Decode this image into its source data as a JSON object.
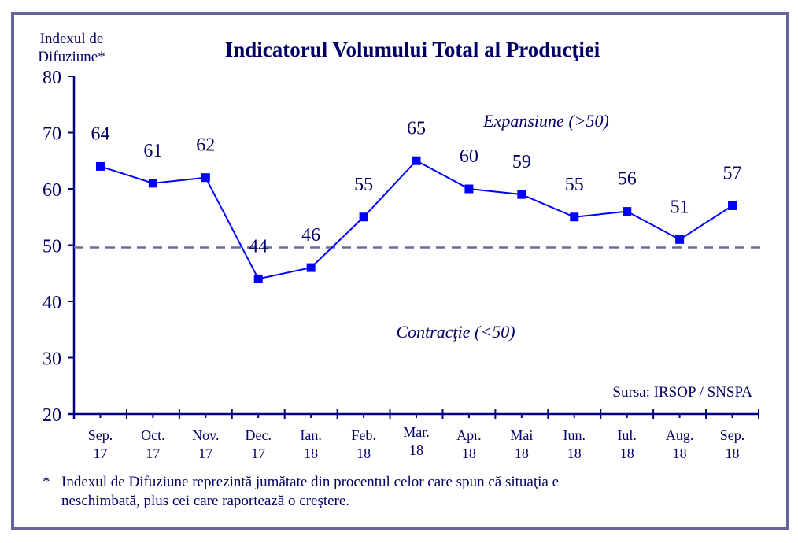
{
  "chart_data": {
    "type": "line",
    "title": "Indicatorul Volumului Total al Producţiei",
    "ylabel": "Indexul de Difuziune*",
    "ylabel_lines": [
      "Indexul de",
      "Difuziune*"
    ],
    "xlabel": "",
    "ylim": [
      20,
      80
    ],
    "yticks": [
      20,
      30,
      40,
      50,
      60,
      70,
      80
    ],
    "categories": [
      [
        "Sep.",
        "17"
      ],
      [
        "Oct.",
        "17"
      ],
      [
        "Nov.",
        "17"
      ],
      [
        "Dec.",
        "17"
      ],
      [
        "Ian.",
        "18"
      ],
      [
        "Feb.",
        "18"
      ],
      [
        "Mar.",
        "18"
      ],
      [
        "Apr.",
        "18"
      ],
      [
        "Mai",
        "18"
      ],
      [
        "Iun.",
        "18"
      ],
      [
        "Iul.",
        "18"
      ],
      [
        "Aug.",
        "18"
      ],
      [
        "Sep.",
        "18"
      ]
    ],
    "series": [
      {
        "name": "Indicatorul Volumului Total al Producţiei",
        "color": "#0000ff",
        "marker": "square",
        "values": [
          64,
          61,
          62,
          44,
          46,
          55,
          65,
          60,
          59,
          55,
          56,
          51,
          57
        ],
        "data_labels": [
          "64",
          "61",
          "62",
          "44",
          "46",
          "55",
          "65",
          "60",
          "59",
          "55",
          "56",
          "51",
          "57"
        ]
      }
    ],
    "reference_line": {
      "value": 50,
      "style": "dashed",
      "color": "#6b6b99"
    },
    "annotations": [
      {
        "text": "Expansiune (>50)",
        "style": "italic",
        "region": "above-reference"
      },
      {
        "text": "Contracţie (<50)",
        "style": "italic",
        "region": "below-reference"
      }
    ],
    "source": "Sursa: IRSOP / SNSPA",
    "grid": false,
    "legend": "none"
  },
  "colors": {
    "text": "#000066",
    "axis": "#000080",
    "series": "#0000ff",
    "frame": "#66669a",
    "reference": "#6b6b99"
  },
  "footnote": {
    "marker": "*",
    "line1": "Indexul de Difuziune reprezintă jumătate din procentul celor care spun că situaţia e",
    "line2": "neschimbată, plus cei care raportează o creştere."
  }
}
